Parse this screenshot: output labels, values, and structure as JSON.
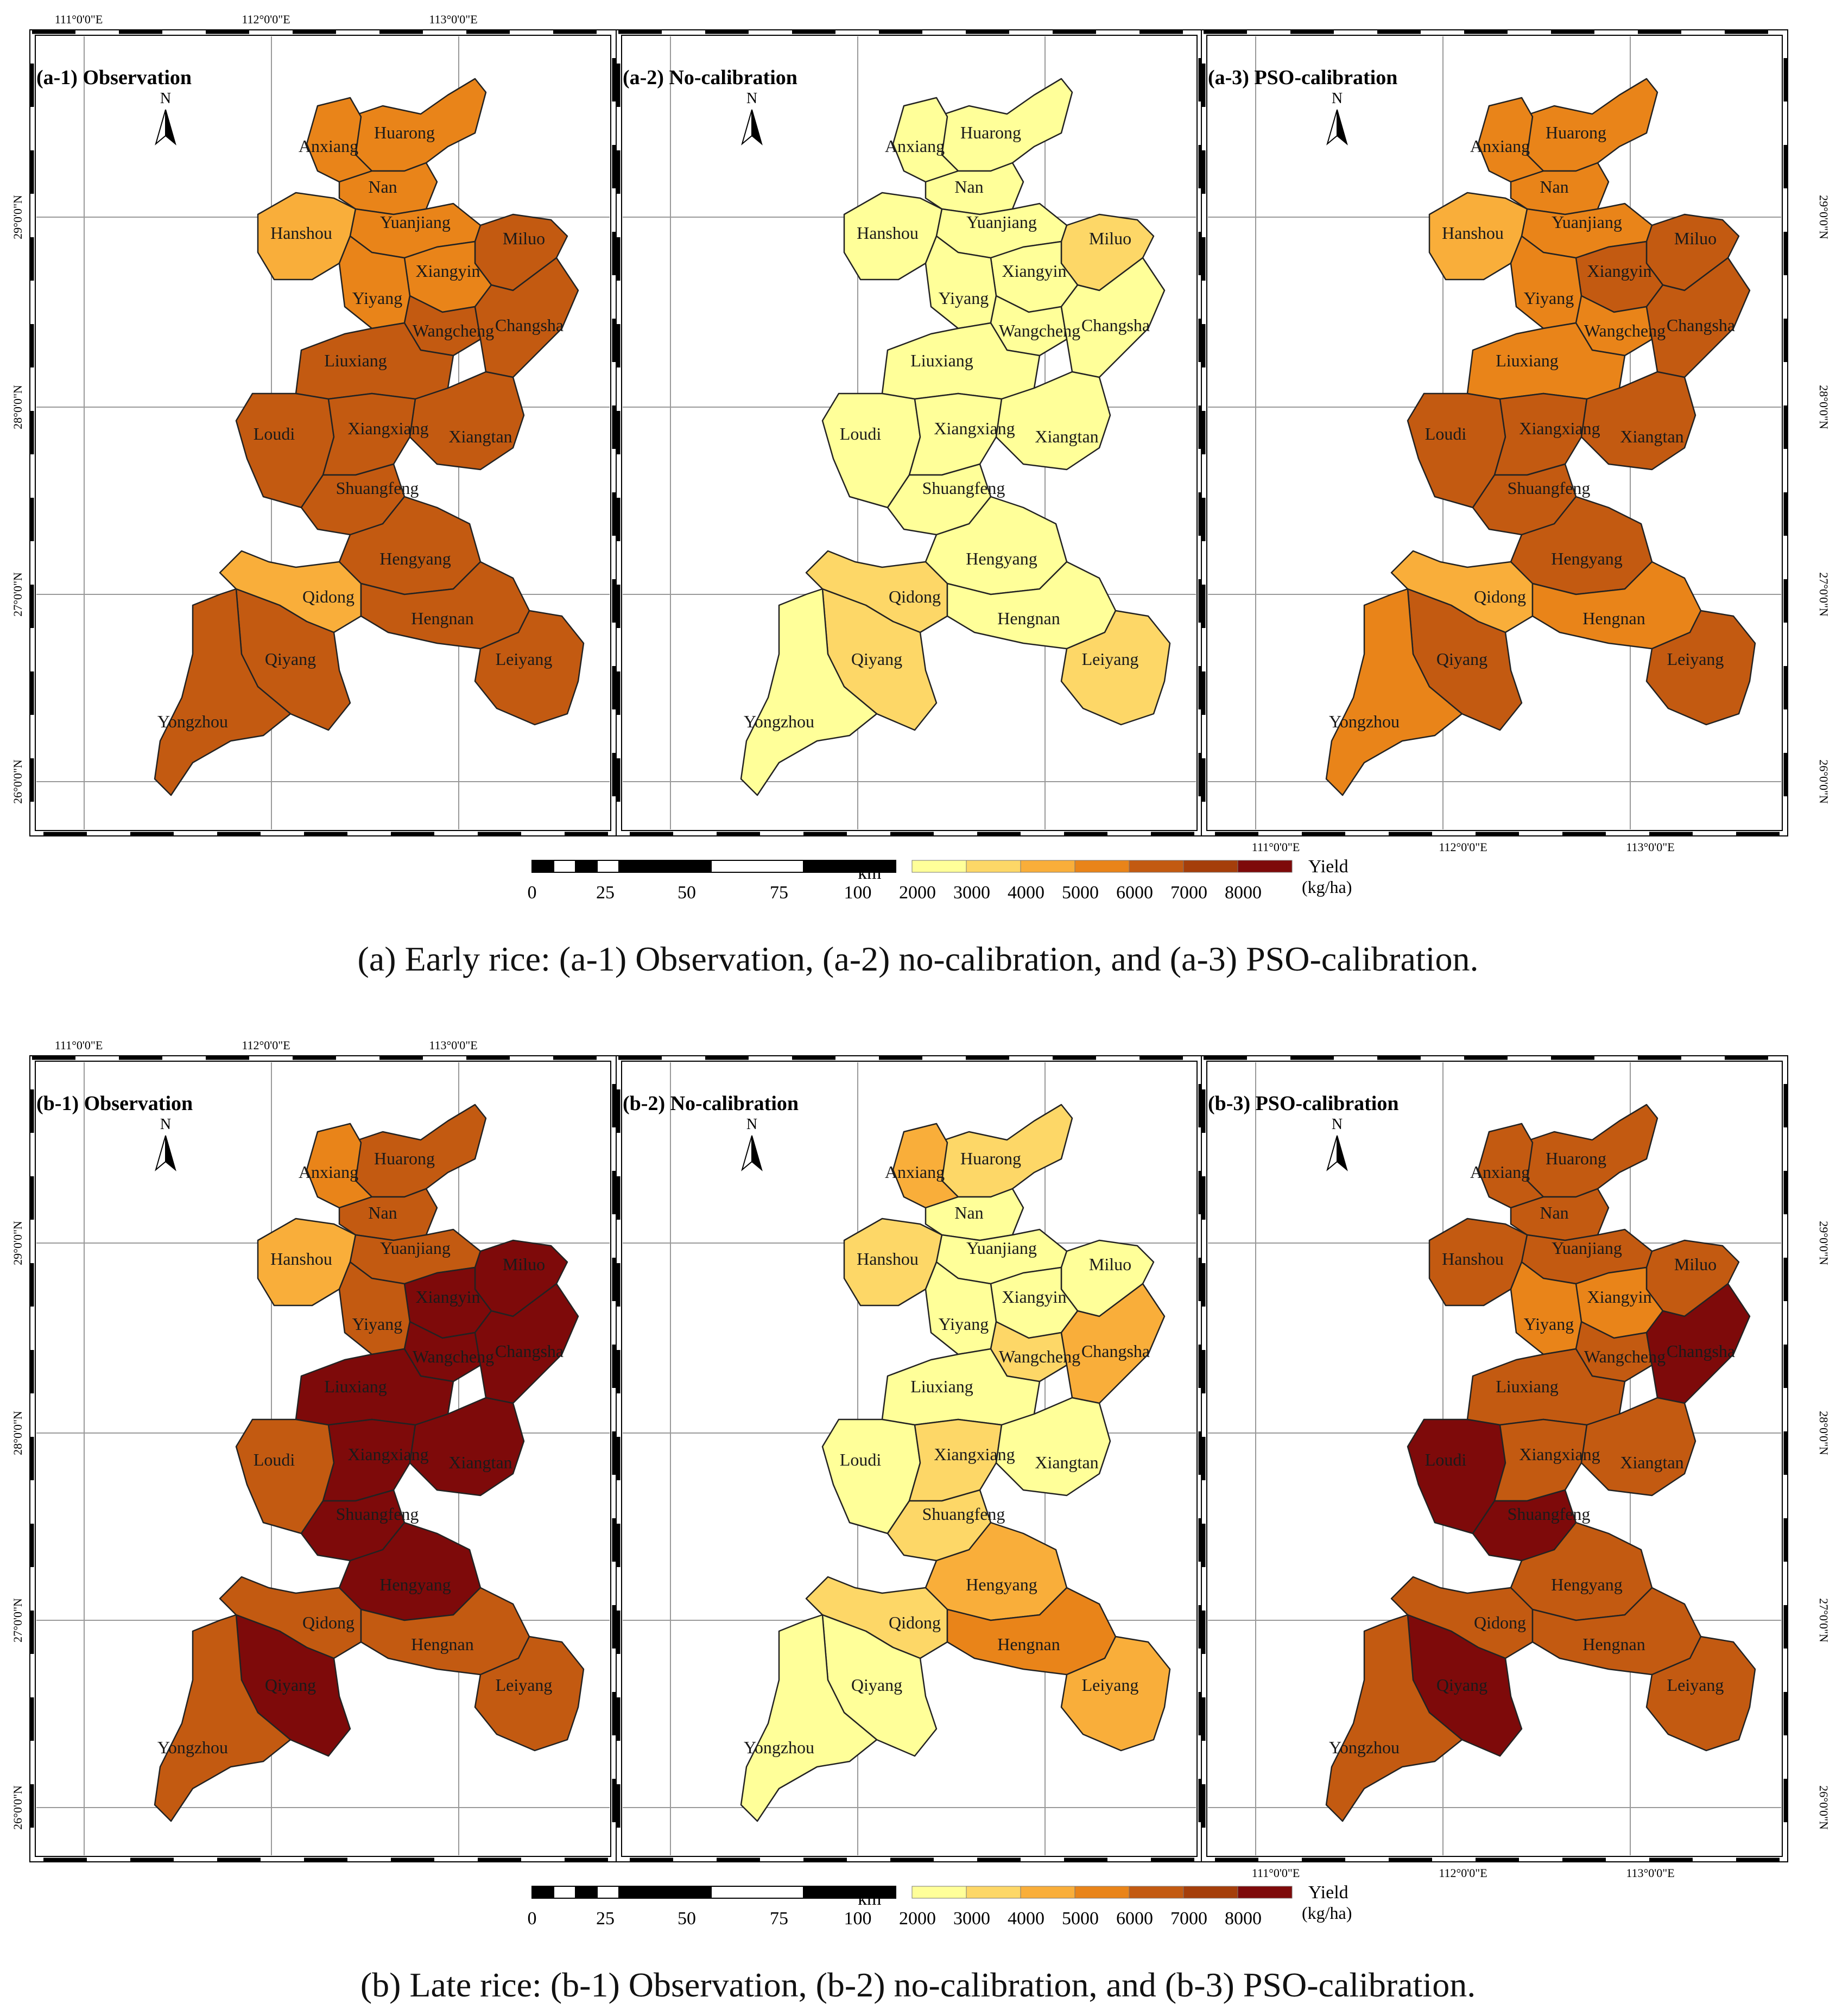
{
  "figure": {
    "classes": [
      {
        "range": "2000-3000",
        "color": "#FFFF99"
      },
      {
        "range": "3000-4000",
        "color": "#FDD767"
      },
      {
        "range": "4000-5000",
        "color": "#F9AE3A"
      },
      {
        "range": "5000-6000",
        "color": "#E98419"
      },
      {
        "range": "6000-7000",
        "color": "#C35A11"
      },
      {
        "range": "7000-8000",
        "color": "#A53E0A"
      },
      {
        "range": ">8000",
        "color": "#7E0A0A"
      }
    ],
    "legend": {
      "title": "Yield",
      "unit": "(kg/ha)",
      "breaks": [
        "2000",
        "3000",
        "4000",
        "5000",
        "6000",
        "7000",
        "8000"
      ]
    },
    "scalebar": {
      "unit": "km",
      "ticks": [
        "0",
        "25",
        "50",
        "75",
        "100"
      ]
    },
    "north_label": "N",
    "lon_labels": [
      "111°0'0\"E",
      "112°0'0\"E",
      "113°0'0\"E"
    ],
    "lat_labels": [
      "29°0'0\"N",
      "28°0'0\"N",
      "27°0'0\"N",
      "26°0'0\"N"
    ]
  },
  "counties": [
    "Huarong",
    "Anxiang",
    "Nan",
    "Hanshou",
    "Yuanjiang",
    "Miluo",
    "Xiangyin",
    "Yiyang",
    "Wangcheng",
    "Changsha",
    "Liuxiang",
    "Loudi",
    "Xiangxiang",
    "Xiangtan",
    "Shuangfeng",
    "Hengyang",
    "Qidong",
    "Hengnan",
    "Qiyang",
    "Leiyang",
    "Yongzhou"
  ],
  "rows": [
    {
      "caption": "(a) Early rice: (a-1) Observation, (a-2) no-calibration, and (a-3) PSO-calibration.",
      "panels": [
        {
          "title": "(a-1) Observation",
          "classes": {
            "Huarong": "5000-6000",
            "Anxiang": "5000-6000",
            "Nan": "5000-6000",
            "Hanshou": "4000-5000",
            "Yuanjiang": "5000-6000",
            "Miluo": "6000-7000",
            "Xiangyin": "5000-6000",
            "Yiyang": "5000-6000",
            "Wangcheng": "6000-7000",
            "Changsha": "6000-7000",
            "Liuxiang": "6000-7000",
            "Loudi": "6000-7000",
            "Xiangxiang": "6000-7000",
            "Xiangtan": "6000-7000",
            "Shuangfeng": "6000-7000",
            "Hengyang": "6000-7000",
            "Qidong": "4000-5000",
            "Hengnan": "6000-7000",
            "Qiyang": "6000-7000",
            "Leiyang": "6000-7000",
            "Yongzhou": "6000-7000"
          }
        },
        {
          "title": "(a-2) No-calibration",
          "classes": {
            "Huarong": "2000-3000",
            "Anxiang": "2000-3000",
            "Nan": "2000-3000",
            "Hanshou": "2000-3000",
            "Yuanjiang": "2000-3000",
            "Miluo": "3000-4000",
            "Xiangyin": "2000-3000",
            "Yiyang": "2000-3000",
            "Wangcheng": "2000-3000",
            "Changsha": "2000-3000",
            "Liuxiang": "2000-3000",
            "Loudi": "2000-3000",
            "Xiangxiang": "2000-3000",
            "Xiangtan": "2000-3000",
            "Shuangfeng": "2000-3000",
            "Hengyang": "2000-3000",
            "Qidong": "3000-4000",
            "Hengnan": "2000-3000",
            "Qiyang": "3000-4000",
            "Leiyang": "3000-4000",
            "Yongzhou": "2000-3000"
          }
        },
        {
          "title": "(a-3) PSO-calibration",
          "classes": {
            "Huarong": "5000-6000",
            "Anxiang": "5000-6000",
            "Nan": "5000-6000",
            "Hanshou": "4000-5000",
            "Yuanjiang": "5000-6000",
            "Miluo": "6000-7000",
            "Xiangyin": "6000-7000",
            "Yiyang": "5000-6000",
            "Wangcheng": "5000-6000",
            "Changsha": "6000-7000",
            "Liuxiang": "5000-6000",
            "Loudi": "6000-7000",
            "Xiangxiang": "6000-7000",
            "Xiangtan": "6000-7000",
            "Shuangfeng": "6000-7000",
            "Hengyang": "6000-7000",
            "Qidong": "4000-5000",
            "Hengnan": "5000-6000",
            "Qiyang": "6000-7000",
            "Leiyang": "6000-7000",
            "Yongzhou": "5000-6000"
          }
        }
      ]
    },
    {
      "caption": "(b) Late rice: (b-1) Observation, (b-2) no-calibration, and (b-3) PSO-calibration.",
      "panels": [
        {
          "title": "(b-1) Observation",
          "classes": {
            "Huarong": "6000-7000",
            "Anxiang": "5000-6000",
            "Nan": "6000-7000",
            "Hanshou": "4000-5000",
            "Yuanjiang": "6000-7000",
            "Miluo": ">8000",
            "Xiangyin": ">8000",
            "Yiyang": "6000-7000",
            "Wangcheng": ">8000",
            "Changsha": ">8000",
            "Liuxiang": ">8000",
            "Loudi": "6000-7000",
            "Xiangxiang": ">8000",
            "Xiangtan": ">8000",
            "Shuangfeng": ">8000",
            "Hengyang": ">8000",
            "Qidong": "6000-7000",
            "Hengnan": "6000-7000",
            "Qiyang": ">8000",
            "Leiyang": "6000-7000",
            "Yongzhou": "6000-7000"
          }
        },
        {
          "title": "(b-2) No-calibration",
          "classes": {
            "Huarong": "3000-4000",
            "Anxiang": "4000-5000",
            "Nan": "2000-3000",
            "Hanshou": "3000-4000",
            "Yuanjiang": "2000-3000",
            "Miluo": "2000-3000",
            "Xiangyin": "2000-3000",
            "Yiyang": "2000-3000",
            "Wangcheng": "3000-4000",
            "Changsha": "4000-5000",
            "Liuxiang": "2000-3000",
            "Loudi": "2000-3000",
            "Xiangxiang": "3000-4000",
            "Xiangtan": "2000-3000",
            "Shuangfeng": "3000-4000",
            "Hengyang": "4000-5000",
            "Qidong": "3000-4000",
            "Hengnan": "5000-6000",
            "Qiyang": "2000-3000",
            "Leiyang": "4000-5000",
            "Yongzhou": "2000-3000"
          }
        },
        {
          "title": "(b-3) PSO-calibration",
          "classes": {
            "Huarong": "6000-7000",
            "Anxiang": "6000-7000",
            "Nan": "6000-7000",
            "Hanshou": "6000-7000",
            "Yuanjiang": "6000-7000",
            "Miluo": "6000-7000",
            "Xiangyin": "5000-6000",
            "Yiyang": "5000-6000",
            "Wangcheng": "6000-7000",
            "Changsha": ">8000",
            "Liuxiang": "6000-7000",
            "Loudi": ">8000",
            "Xiangxiang": "6000-7000",
            "Xiangtan": "6000-7000",
            "Shuangfeng": ">8000",
            "Hengyang": "6000-7000",
            "Qidong": "6000-7000",
            "Hengnan": "6000-7000",
            "Qiyang": ">8000",
            "Leiyang": "6000-7000",
            "Yongzhou": "6000-7000"
          }
        }
      ]
    }
  ]
}
